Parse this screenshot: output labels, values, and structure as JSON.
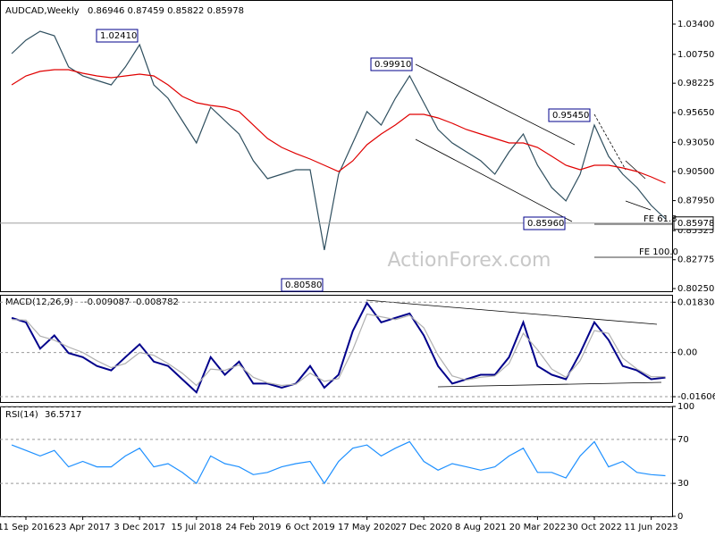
{
  "chart_data": [
    {
      "type": "line",
      "title": "AUDCAD,Weekly",
      "subtitle": "0.86946 0.87459 0.85822 0.85978",
      "series": [
        {
          "color": "#2f4f5f",
          "values": [
            1.0082,
            1.0199,
            1.0277,
            1.0238,
            0.9965,
            0.9887,
            0.9847,
            0.9808,
            0.9965,
            1.016,
            0.9808,
            0.9691,
            0.9495,
            0.93,
            0.9613,
            0.9495,
            0.9378,
            0.9144,
            0.8987,
            0.9026,
            0.9065,
            0.9065,
            0.8362,
            0.9026,
            0.93,
            0.9574,
            0.9456,
            0.9691,
            0.9887,
            0.9652,
            0.9417,
            0.93,
            0.9222,
            0.9144,
            0.9026,
            0.9222,
            0.9378,
            0.9104,
            0.8909,
            0.8792,
            0.9026,
            0.9456,
            0.9183,
            0.9026,
            0.8909,
            0.8753,
            0.8635
          ]
        },
        {
          "color": "#e00000",
          "values": [
            0.9808,
            0.9886,
            0.9926,
            0.9941,
            0.9941,
            0.991,
            0.9886,
            0.9871,
            0.9886,
            0.9902,
            0.9886,
            0.9808,
            0.9707,
            0.9652,
            0.9628,
            0.9613,
            0.9574,
            0.9457,
            0.9339,
            0.9261,
            0.9207,
            0.9159,
            0.9104,
            0.905,
            0.9143,
            0.9284,
            0.9378,
            0.9457,
            0.955,
            0.955,
            0.9519,
            0.9472,
            0.9417,
            0.9378,
            0.9339,
            0.93,
            0.93,
            0.9261,
            0.9183,
            0.9104,
            0.9065,
            0.9104,
            0.9104,
            0.9081,
            0.905,
            0.9003,
            0.8948
          ]
        }
      ],
      "ylim": [
        0.7994,
        1.0551
      ],
      "yticks": [
        {
          "value": 1.034,
          "label": "1.03400"
        },
        {
          "value": 1.0075,
          "label": "1.00750"
        },
        {
          "value": 0.98225,
          "label": "0.98225"
        },
        {
          "value": 0.9565,
          "label": "0.95650"
        },
        {
          "value": 0.9305,
          "label": "0.93050"
        },
        {
          "value": 0.905,
          "label": "0.90500"
        },
        {
          "value": 0.8795,
          "label": "0.87950"
        },
        {
          "value": 0.85325,
          "label": "0.85325"
        },
        {
          "value": 0.82775,
          "label": "0.82775"
        },
        {
          "value": 0.8025,
          "label": "0.80250"
        }
      ],
      "current_price": {
        "value": 0.85978,
        "label": "0.85978"
      },
      "annotations": [
        "1.02410",
        "0.99910",
        "0.95450",
        "0.85960",
        "0.80580",
        "FE 61.8",
        "FE 100.0"
      ],
      "watermark": "ActionForex.com"
    },
    {
      "type": "line",
      "title": "MACD(12,26,9)",
      "subtitle": "-0.009087 -0.008782",
      "series": [
        {
          "color": "#00008b",
          "values": [
            0.0126,
            0.011,
            0.0014,
            0.0062,
            -0.0002,
            -0.0017,
            -0.0049,
            -0.0065,
            -0.0017,
            0.003,
            -0.0033,
            -0.0049,
            -0.0097,
            -0.0145,
            -0.0017,
            -0.0081,
            -0.0033,
            -0.0113,
            -0.0113,
            -0.0128,
            -0.0113,
            -0.0049,
            -0.0128,
            -0.0081,
            0.0078,
            0.018,
            0.011,
            0.0126,
            0.0142,
            0.0062,
            -0.0049,
            -0.0113,
            -0.0097,
            -0.0081,
            -0.0081,
            -0.0017,
            0.011,
            -0.0049,
            -0.0081,
            -0.0097,
            -0.0002,
            0.011,
            0.0046,
            -0.0049,
            -0.0065,
            -0.0097,
            -0.0091
          ]
        },
        {
          "color": "#b0b0b0",
          "values": [
            0.012,
            0.0118,
            0.006,
            0.0045,
            0.002,
            0.0,
            -0.003,
            -0.0055,
            -0.004,
            0.0,
            -0.001,
            -0.004,
            -0.0075,
            -0.012,
            -0.006,
            -0.0065,
            -0.0045,
            -0.009,
            -0.011,
            -0.012,
            -0.0115,
            -0.0075,
            -0.0105,
            -0.0095,
            0.001,
            0.014,
            0.013,
            0.012,
            0.0135,
            0.009,
            -0.001,
            -0.0085,
            -0.01,
            -0.009,
            -0.0085,
            -0.004,
            0.007,
            0.001,
            -0.006,
            -0.009,
            -0.003,
            0.008,
            0.007,
            -0.002,
            -0.006,
            -0.0088,
            -0.0088
          ]
        }
      ],
      "ylim": [
        -0.018,
        0.021
      ],
      "yticks": [
        0.018304,
        {
          "value": 0,
          "label": "0.00"
        },
        -0.016064
      ],
      "grid": true
    },
    {
      "type": "line",
      "title": "RSI(14)",
      "subtitle": "36.5717",
      "categories": [
        null,
        "11 Sep 2016",
        null,
        null,
        null,
        "23 Apr 2017",
        null,
        null,
        null,
        "3 Dec 2017",
        null,
        null,
        null,
        "15 Jul 2018",
        null,
        null,
        null,
        "24 Feb 2019",
        null,
        null,
        null,
        "6 Oct 2019",
        null,
        null,
        null,
        "17 May 2020",
        null,
        null,
        null,
        "27 Dec 2020",
        null,
        null,
        null,
        "8 Aug 2021",
        null,
        null,
        null,
        "20 Mar 2022",
        null,
        null,
        null,
        "30 Oct 2022",
        null,
        null,
        null,
        "11 Jun 2023",
        null
      ],
      "series": [
        {
          "color": "#1e90ff",
          "values": [
            65,
            60,
            55,
            60,
            45,
            50,
            45,
            45,
            55,
            62,
            45,
            48,
            40,
            30,
            55,
            48,
            45,
            38,
            40,
            45,
            48,
            50,
            30,
            50,
            62,
            65,
            55,
            62,
            68,
            50,
            42,
            48,
            45,
            42,
            45,
            55,
            62,
            40,
            40,
            35,
            55,
            68,
            45,
            50,
            40,
            38,
            37
          ]
        }
      ],
      "ylim": [
        0,
        100
      ],
      "yticks": [
        0,
        30,
        70,
        100
      ],
      "grid": true
    }
  ]
}
